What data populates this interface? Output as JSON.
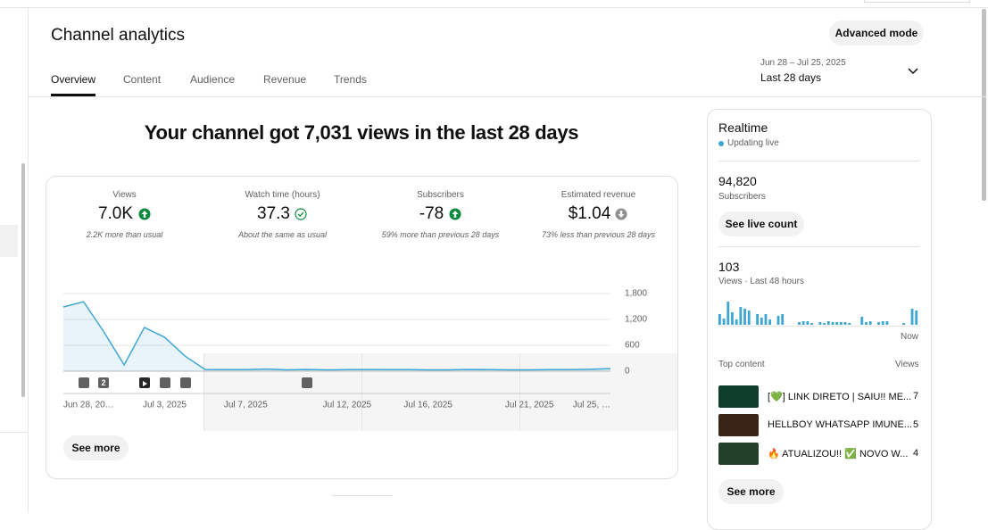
{
  "header": {
    "title": "Channel analytics",
    "button": "Advanced mode",
    "tabs": [
      "Overview",
      "Content",
      "Audience",
      "Revenue",
      "Trends"
    ],
    "date_range": "Jun 28 – Jul 25, 2025",
    "period": "Last 28 days"
  },
  "headline": "Your channel got 7,031 views in the last 28 days",
  "metrics": [
    {
      "label": "Views",
      "value": "7.0K",
      "note": "2.2K more than usual"
    },
    {
      "label": "Watch time (hours)",
      "value": "37.3",
      "note": "About the same as usual"
    },
    {
      "label": "Subscribers",
      "value": "-78",
      "note": "59% more than previous 28 days"
    },
    {
      "label": "Estimated revenue",
      "value": "$1.04",
      "note": "73% less than previous 28 days"
    }
  ],
  "chart_data": {
    "type": "line",
    "categories": [
      "Jun 28, 20…",
      null,
      null,
      null,
      null,
      "Jul 3, 2025",
      null,
      null,
      null,
      "Jul 7, 2025",
      null,
      null,
      null,
      null,
      "Jul 12, 2025",
      null,
      null,
      null,
      "Jul 16, 2025",
      null,
      null,
      null,
      null,
      "Jul 21, 2025",
      null,
      null,
      null,
      "Jul 25, …"
    ],
    "values": [
      1490,
      1610,
      910,
      145,
      1015,
      785,
      350,
      40,
      35,
      35,
      50,
      30,
      40,
      30,
      35,
      40,
      35,
      35,
      30,
      30,
      40,
      35,
      30,
      30,
      35,
      35,
      45,
      60
    ],
    "color": "#3ea6d3",
    "ylim": [
      0,
      1800
    ],
    "yticks": [
      0,
      600,
      {
        "value": 1200,
        "label": "1,200"
      },
      {
        "value": 1800,
        "label": "1,800"
      }
    ],
    "grid": true
  },
  "event_badge": "2",
  "chart_button": "See more",
  "realtime": {
    "title": "Realtime",
    "status": "Updating live",
    "subscribers": "94,820",
    "subscribers_label": "Subscribers",
    "live_button": "See live count",
    "views": "103",
    "views_label": "Views · Last 48 hours",
    "bars": [
      12,
      7,
      26,
      14,
      6,
      20,
      18,
      16,
      0,
      12,
      8,
      12,
      6,
      0,
      10,
      12,
      0,
      0,
      0,
      3,
      4,
      4,
      2,
      0,
      3,
      2,
      4,
      3,
      3,
      3,
      3,
      2,
      0,
      0,
      9,
      3,
      4,
      0,
      3,
      4,
      4,
      0,
      0,
      0,
      2,
      0,
      18,
      16
    ],
    "bar_color": "#3ea6d3",
    "now_label": "Now",
    "top_content_label": "Top content",
    "views_column": "Views",
    "top_content": [
      {
        "title": "[💚] LINK DIRETO | SAIU!! ME...",
        "views": 7
      },
      {
        "title": "HELLBOY WHATSAPP IMUNE...",
        "views": 5
      },
      {
        "title": "🔥 ATUALIZOU!! ✅ NOVO W...",
        "views": 4
      }
    ],
    "more_button": "See more"
  }
}
